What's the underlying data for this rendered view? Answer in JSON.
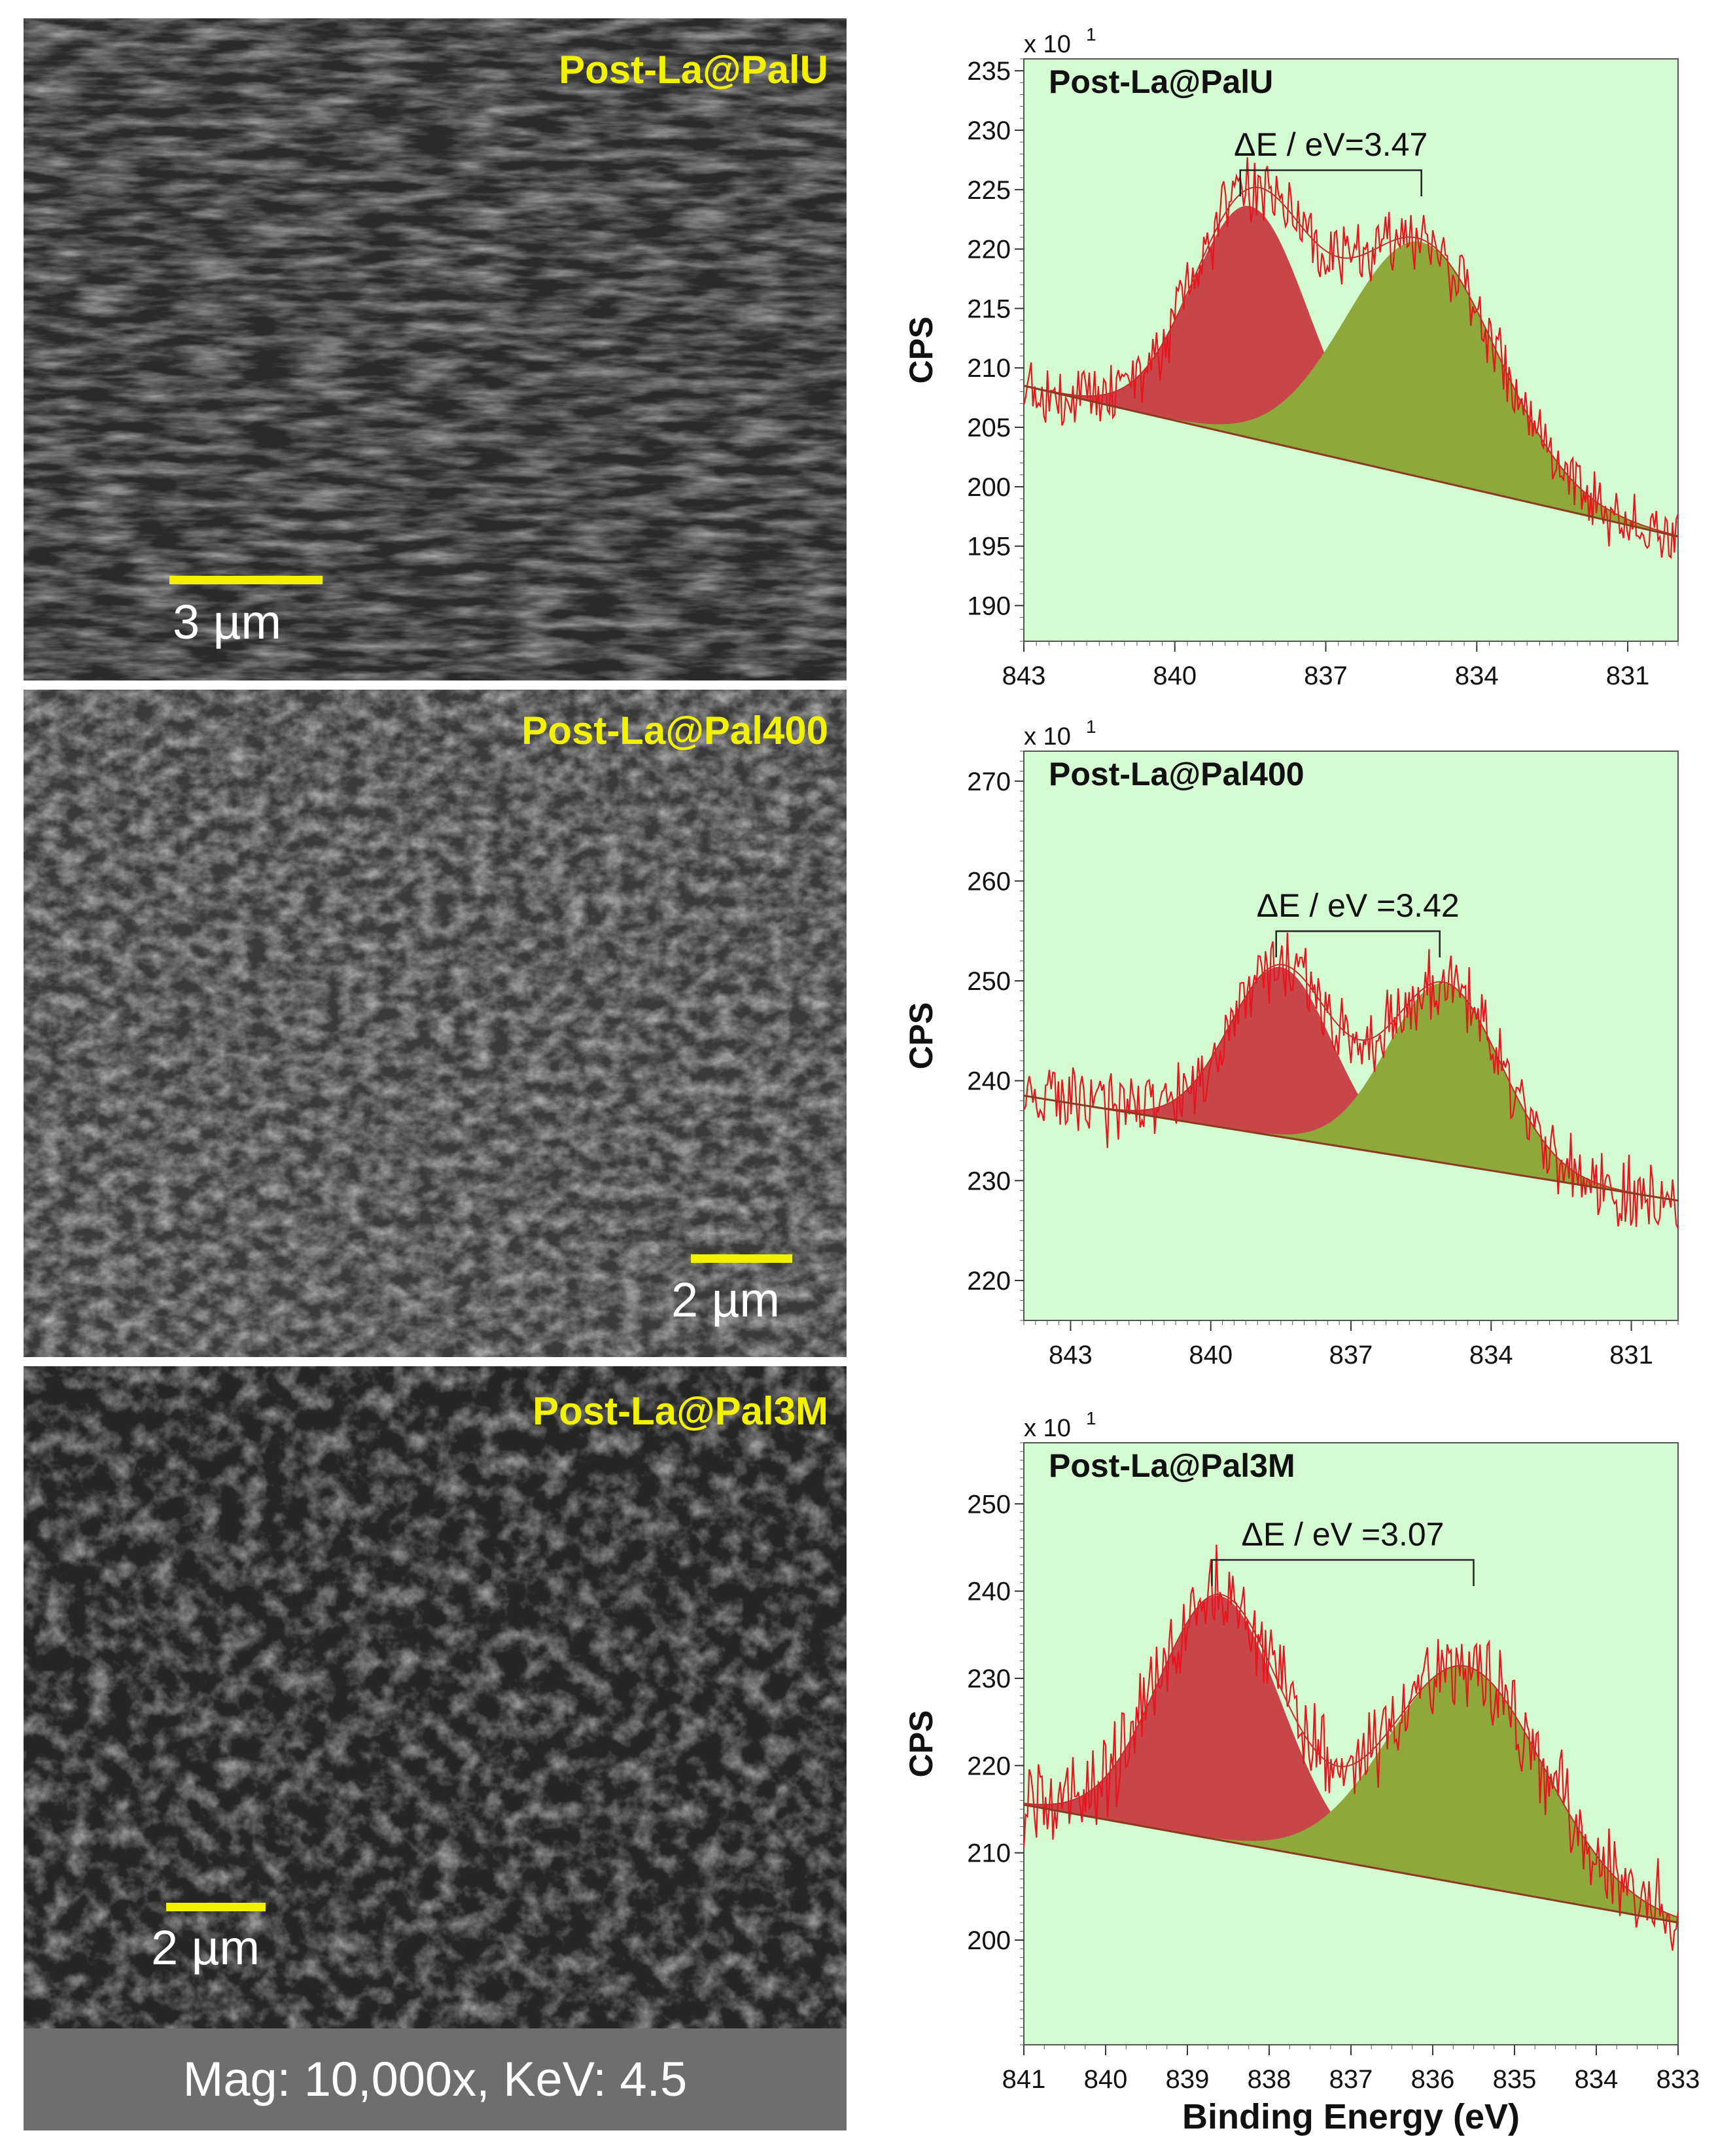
{
  "sem_panels": [
    {
      "label": "Post-La@PalU",
      "scale": "3 µm"
    },
    {
      "label": "Post-La@Pal400",
      "scale": "2 µm"
    },
    {
      "label": "Post-La@Pal3M",
      "scale": "2 µm"
    }
  ],
  "caption": "Mag: 10,000x, KeV: 4.5",
  "colors": {
    "plot_background": "#d4fad2",
    "peak1_fill": "#c8464a",
    "peak2_fill": "#8ea83c",
    "raw_line": "#e8141e",
    "baseline": "#8b3a1e",
    "scale_bar": "#f2f200"
  },
  "chart_data": [
    {
      "type": "line",
      "title": "Post-La@PalU",
      "annotation": "ΔE / eV=3.47",
      "multiplier": "x 10",
      "multiplier_exp": "1",
      "ylabel": "CPS",
      "xlabel": "",
      "xlim": [
        843,
        830
      ],
      "ylim": [
        187,
        236
      ],
      "xticks": [
        843,
        840,
        837,
        834,
        831
      ],
      "yticks": [
        190,
        195,
        200,
        205,
        210,
        215,
        220,
        225,
        230,
        235
      ],
      "baseline": {
        "left": 208.5,
        "right": 195.8
      },
      "peaks": [
        {
          "center": 838.5,
          "height": 19.5,
          "sigma": 1.15
        },
        {
          "center": 835.1,
          "height": 19.8,
          "sigma": 1.5
        }
      ],
      "bracket": [
        838.7,
        835.1
      ],
      "noise": 2.2
    },
    {
      "type": "line",
      "title": "Post-La@Pal400",
      "annotation": "ΔE / eV =3.42",
      "multiplier": "x 10",
      "multiplier_exp": "1",
      "ylabel": "CPS",
      "xlabel": "",
      "xlim": [
        844,
        830
      ],
      "ylim": [
        216,
        273
      ],
      "xticks": [
        843,
        840,
        837,
        834,
        831
      ],
      "yticks": [
        220,
        230,
        240,
        250,
        260,
        270
      ],
      "baseline": {
        "left": 238.5,
        "right": 228.0
      },
      "peaks": [
        {
          "center": 838.5,
          "height": 17.0,
          "sigma": 1.1
        },
        {
          "center": 835.0,
          "height": 18.0,
          "sigma": 1.2
        }
      ],
      "bracket": [
        838.6,
        835.1
      ],
      "noise": 2.8
    },
    {
      "type": "line",
      "title": "Post-La@Pal3M",
      "annotation": "ΔE / eV =3.07",
      "multiplier": "x 10",
      "multiplier_exp": "1",
      "ylabel": "CPS",
      "xlabel": "Binding Energy (eV)",
      "xlim": [
        841,
        833
      ],
      "ylim": [
        188,
        257
      ],
      "xticks": [
        841,
        840,
        839,
        838,
        837,
        836,
        835,
        834,
        833
      ],
      "yticks": [
        200,
        210,
        220,
        230,
        240,
        250
      ],
      "baseline": {
        "left": 215.5,
        "right": 202.0
      },
      "peaks": [
        {
          "center": 838.6,
          "height": 28.0,
          "sigma": 0.75
        },
        {
          "center": 835.6,
          "height": 25.0,
          "sigma": 0.95
        }
      ],
      "bracket": [
        838.7,
        835.5
      ],
      "noise": 4.0
    }
  ]
}
